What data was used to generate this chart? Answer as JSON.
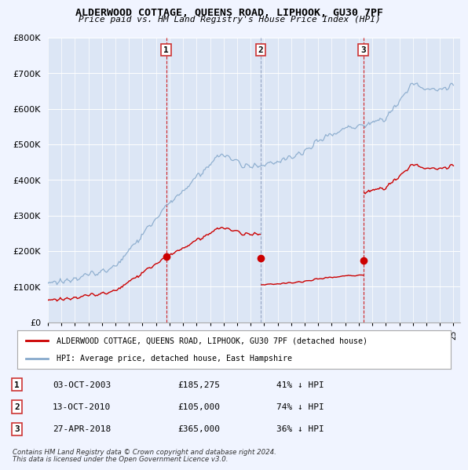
{
  "title": "ALDERWOOD COTTAGE, QUEENS ROAD, LIPHOOK, GU30 7PF",
  "subtitle": "Price paid vs. HM Land Registry's House Price Index (HPI)",
  "legend_property": "ALDERWOOD COTTAGE, QUEENS ROAD, LIPHOOK, GU30 7PF (detached house)",
  "legend_hpi": "HPI: Average price, detached house, East Hampshire",
  "footnote1": "Contains HM Land Registry data © Crown copyright and database right 2024.",
  "footnote2": "This data is licensed under the Open Government Licence v3.0.",
  "sales": [
    {
      "num": 1,
      "date": "03-OCT-2003",
      "price": 185275,
      "pct": "41%",
      "dir": "↓",
      "year_x": 2003.75,
      "vline_color": "#cc0000",
      "vline_style": "--"
    },
    {
      "num": 2,
      "date": "13-OCT-2010",
      "price": 105000,
      "pct": "74%",
      "dir": "↓",
      "year_x": 2010.75,
      "vline_color": "#8899bb",
      "vline_style": "--"
    },
    {
      "num": 3,
      "date": "27-APR-2018",
      "price": 365000,
      "pct": "36%",
      "dir": "↓",
      "year_x": 2018.33,
      "vline_color": "#cc0000",
      "vline_style": "--"
    }
  ],
  "property_color": "#cc0000",
  "hpi_color": "#88aacc",
  "ylim": [
    0,
    800000
  ],
  "yticks": [
    0,
    100000,
    200000,
    300000,
    400000,
    500000,
    600000,
    700000,
    800000
  ],
  "ytick_labels": [
    "£0",
    "£100K",
    "£200K",
    "£300K",
    "£400K",
    "£500K",
    "£600K",
    "£700K",
    "£800K"
  ],
  "xmin": 1995,
  "xmax": 2025.5,
  "background_color": "#dce6f5",
  "plot_bg": "#dce6f5",
  "fig_bg": "#f0f4ff"
}
